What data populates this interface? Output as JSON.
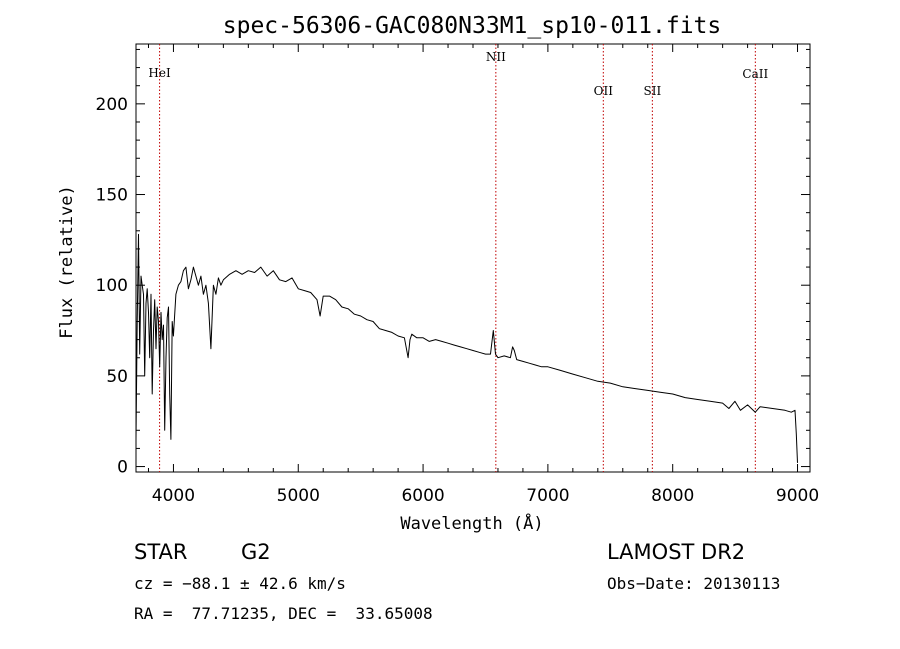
{
  "chart_data": {
    "type": "line",
    "title": "spec-56306-GAC080N33M1_sp10-011.fits",
    "xlabel": "Wavelength (Å)",
    "ylabel": "Flux (relative)",
    "xlim": [
      3700,
      9100
    ],
    "ylim": [
      -3,
      233
    ],
    "x_ticks": [
      4000,
      5000,
      6000,
      7000,
      8000,
      9000
    ],
    "y_ticks": [
      0,
      50,
      100,
      150,
      200
    ],
    "grid": false,
    "line_color": "#000000",
    "marker_color": "#c00000",
    "series": [
      {
        "x": [
          3700,
          3710,
          3720,
          3730,
          3740,
          3750,
          3760,
          3770,
          3780,
          3790,
          3800,
          3810,
          3820,
          3830,
          3840,
          3850,
          3860,
          3870,
          3880,
          3890,
          3900,
          3910,
          3920,
          3930,
          3940,
          3950,
          3960,
          3970,
          3980,
          3990,
          4000,
          4020,
          4040,
          4060,
          4080,
          4100,
          4120,
          4140,
          4160,
          4180,
          4200,
          4220,
          4240,
          4260,
          4280,
          4300,
          4320,
          4340,
          4360,
          4380,
          4400,
          4450,
          4500,
          4550,
          4600,
          4650,
          4700,
          4750,
          4800,
          4850,
          4900,
          4950,
          5000,
          5050,
          5100,
          5150,
          5175,
          5200,
          5250,
          5300,
          5350,
          5400,
          5450,
          5500,
          5550,
          5600,
          5650,
          5700,
          5750,
          5800,
          5850,
          5880,
          5895,
          5910,
          5950,
          6000,
          6050,
          6100,
          6150,
          6200,
          6250,
          6300,
          6350,
          6400,
          6450,
          6500,
          6540,
          6563,
          6580,
          6600,
          6650,
          6700,
          6717,
          6731,
          6750,
          6800,
          6850,
          6900,
          6950,
          7000,
          7100,
          7200,
          7300,
          7400,
          7500,
          7600,
          7700,
          7800,
          7900,
          8000,
          8100,
          8200,
          8300,
          8400,
          8450,
          8498,
          8542,
          8600,
          8662,
          8700,
          8800,
          8900,
          8950,
          8980,
          8990,
          9000
        ],
        "y": [
          15,
          80,
          128,
          62,
          105,
          100,
          95,
          50,
          90,
          98,
          85,
          60,
          95,
          40,
          75,
          92,
          65,
          88,
          80,
          55,
          85,
          70,
          78,
          20,
          60,
          82,
          88,
          40,
          15,
          80,
          72,
          95,
          100,
          102,
          108,
          110,
          98,
          103,
          110,
          105,
          100,
          105,
          95,
          100,
          90,
          65,
          100,
          95,
          104,
          100,
          103,
          106,
          108,
          106,
          108,
          107,
          110,
          105,
          108,
          103,
          102,
          104,
          98,
          97,
          96,
          92,
          83,
          94,
          94,
          92,
          88,
          87,
          84,
          83,
          81,
          80,
          76,
          75,
          74,
          72,
          71,
          60,
          70,
          73,
          71,
          71,
          69,
          70,
          69,
          68,
          67,
          66,
          65,
          64,
          63,
          62,
          62,
          75,
          62,
          60,
          61,
          60,
          66,
          64,
          59,
          58,
          57,
          56,
          55,
          55,
          53,
          51,
          49,
          47,
          46,
          44,
          43,
          42,
          41,
          40,
          38,
          37,
          36,
          35,
          32,
          36,
          31,
          34,
          30,
          33,
          32,
          31,
          30,
          31,
          18,
          2
        ]
      }
    ],
    "lines": [
      {
        "label": "HeI",
        "x": 3889
      },
      {
        "label": "NII",
        "x": 6583
      },
      {
        "label": "OII",
        "x": 7444
      },
      {
        "label": "SII",
        "x": 7837
      },
      {
        "label": "CaII",
        "x": 8662
      }
    ]
  },
  "info": {
    "object_class": "STAR",
    "subclass": "G2",
    "survey": "LAMOST DR2",
    "cz": "cz = −88.1 ± 42.6 km/s",
    "obs_date": "Obs−Date: 20130113",
    "coords": "RA =  77.71235, DEC =  33.65008"
  }
}
